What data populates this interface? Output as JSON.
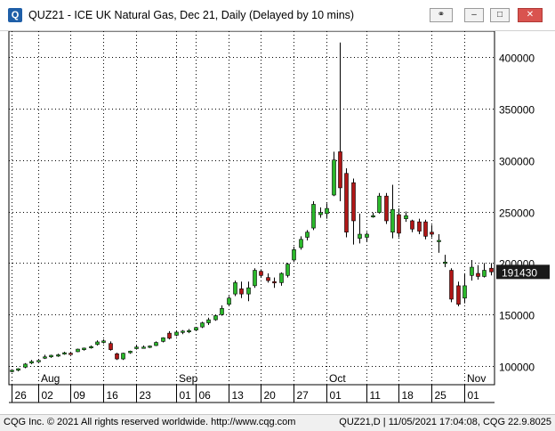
{
  "window": {
    "title": "QUZ21 - ICE UK Natural Gas, Dec 21, Daily (Delayed by 10 mins)",
    "app_icon_letter": "Q",
    "buttons": {
      "minimize": "–",
      "maximize": "□",
      "close": "✕",
      "link": "⚭"
    }
  },
  "chart_data": {
    "type": "candlestick",
    "y_axis": {
      "position": "right",
      "ylim": [
        82000,
        425000
      ],
      "ticks": [
        100000,
        150000,
        200000,
        250000,
        300000,
        350000,
        400000
      ]
    },
    "x_tick_labels": [
      {
        "label": "26",
        "i": 0
      },
      {
        "label": "02",
        "i": 4
      },
      {
        "label": "09",
        "i": 9
      },
      {
        "label": "16",
        "i": 14
      },
      {
        "label": "23",
        "i": 19
      },
      {
        "label": "01",
        "i": 25
      },
      {
        "label": "06",
        "i": 28
      },
      {
        "label": "13",
        "i": 33
      },
      {
        "label": "20",
        "i": 38
      },
      {
        "label": "27",
        "i": 43
      },
      {
        "label": "01",
        "i": 48
      },
      {
        "label": "11",
        "i": 54
      },
      {
        "label": "18",
        "i": 59
      },
      {
        "label": "25",
        "i": 64
      },
      {
        "label": "01",
        "i": 69
      }
    ],
    "month_labels": [
      {
        "label": "Aug",
        "i": 4
      },
      {
        "label": "Sep",
        "i": 25
      },
      {
        "label": "Oct",
        "i": 48
      },
      {
        "label": "Nov",
        "i": 69
      }
    ],
    "last_price": "191430",
    "candles": [
      {
        "o": 95000,
        "h": 97000,
        "l": 94000,
        "c": 96000
      },
      {
        "o": 96000,
        "h": 98000,
        "l": 95000,
        "c": 97500
      },
      {
        "o": 99000,
        "h": 103000,
        "l": 98000,
        "c": 102000
      },
      {
        "o": 103000,
        "h": 106000,
        "l": 102000,
        "c": 104500
      },
      {
        "o": 105000,
        "h": 106000,
        "l": 104000,
        "c": 105500
      },
      {
        "o": 108000,
        "h": 111000,
        "l": 107000,
        "c": 109000
      },
      {
        "o": 109000,
        "h": 111000,
        "l": 108000,
        "c": 110500
      },
      {
        "o": 110000,
        "h": 112000,
        "l": 109000,
        "c": 111000
      },
      {
        "o": 112000,
        "h": 114000,
        "l": 111000,
        "c": 113000
      },
      {
        "o": 112500,
        "h": 113000,
        "l": 111500,
        "c": 112000
      },
      {
        "o": 114000,
        "h": 117000,
        "l": 113500,
        "c": 116500
      },
      {
        "o": 116000,
        "h": 118000,
        "l": 115000,
        "c": 117500
      },
      {
        "o": 118000,
        "h": 120000,
        "l": 117000,
        "c": 119000
      },
      {
        "o": 121000,
        "h": 125000,
        "l": 120000,
        "c": 123500
      },
      {
        "o": 123000,
        "h": 126000,
        "l": 122000,
        "c": 124500
      },
      {
        "o": 122000,
        "h": 124000,
        "l": 115000,
        "c": 116000
      },
      {
        "o": 112000,
        "h": 113000,
        "l": 106000,
        "c": 107000
      },
      {
        "o": 107000,
        "h": 113000,
        "l": 106000,
        "c": 112500
      },
      {
        "o": 113000,
        "h": 115000,
        "l": 112000,
        "c": 114500
      },
      {
        "o": 117000,
        "h": 120000,
        "l": 116000,
        "c": 118500
      },
      {
        "o": 118500,
        "h": 120000,
        "l": 117000,
        "c": 118500
      },
      {
        "o": 118500,
        "h": 120000,
        "l": 117500,
        "c": 119500
      },
      {
        "o": 120000,
        "h": 124000,
        "l": 119500,
        "c": 123000
      },
      {
        "o": 124000,
        "h": 128000,
        "l": 123000,
        "c": 127500
      },
      {
        "o": 132000,
        "h": 134000,
        "l": 126000,
        "c": 127000
      },
      {
        "o": 130000,
        "h": 134000,
        "l": 129000,
        "c": 133000
      },
      {
        "o": 133000,
        "h": 135000,
        "l": 131000,
        "c": 134000
      },
      {
        "o": 134000,
        "h": 136000,
        "l": 132000,
        "c": 134500
      },
      {
        "o": 135000,
        "h": 138000,
        "l": 134000,
        "c": 137500
      },
      {
        "o": 138000,
        "h": 143000,
        "l": 137000,
        "c": 142000
      },
      {
        "o": 142000,
        "h": 147000,
        "l": 140000,
        "c": 145000
      },
      {
        "o": 145000,
        "h": 150000,
        "l": 144000,
        "c": 149000
      },
      {
        "o": 150000,
        "h": 159000,
        "l": 149000,
        "c": 156000
      },
      {
        "o": 160000,
        "h": 168000,
        "l": 158000,
        "c": 166000
      },
      {
        "o": 170000,
        "h": 183000,
        "l": 168000,
        "c": 181000
      },
      {
        "o": 175000,
        "h": 182000,
        "l": 166000,
        "c": 170000
      },
      {
        "o": 170000,
        "h": 182000,
        "l": 163000,
        "c": 176000
      },
      {
        "o": 178000,
        "h": 195000,
        "l": 176000,
        "c": 193000
      },
      {
        "o": 192000,
        "h": 194000,
        "l": 186000,
        "c": 188000
      },
      {
        "o": 186000,
        "h": 190000,
        "l": 181000,
        "c": 183000
      },
      {
        "o": 182000,
        "h": 186000,
        "l": 176000,
        "c": 181000
      },
      {
        "o": 181000,
        "h": 191000,
        "l": 178000,
        "c": 190000
      },
      {
        "o": 188000,
        "h": 200000,
        "l": 186000,
        "c": 199000
      },
      {
        "o": 203000,
        "h": 216000,
        "l": 201000,
        "c": 213000
      },
      {
        "o": 215000,
        "h": 226000,
        "l": 213000,
        "c": 223000
      },
      {
        "o": 225000,
        "h": 232000,
        "l": 222000,
        "c": 230000
      },
      {
        "o": 234000,
        "h": 260000,
        "l": 232000,
        "c": 257000
      },
      {
        "o": 247000,
        "h": 254000,
        "l": 244000,
        "c": 249000
      },
      {
        "o": 248000,
        "h": 258000,
        "l": 243000,
        "c": 253000
      },
      {
        "o": 266000,
        "h": 308000,
        "l": 265000,
        "c": 300000
      },
      {
        "o": 308000,
        "h": 414000,
        "l": 260000,
        "c": 273000
      },
      {
        "o": 287000,
        "h": 292000,
        "l": 225000,
        "c": 230000
      },
      {
        "o": 278000,
        "h": 282000,
        "l": 218000,
        "c": 241000
      },
      {
        "o": 224000,
        "h": 248000,
        "l": 219000,
        "c": 228000
      },
      {
        "o": 225000,
        "h": 230000,
        "l": 221000,
        "c": 228000
      },
      {
        "o": 245000,
        "h": 249000,
        "l": 244000,
        "c": 246000
      },
      {
        "o": 249000,
        "h": 268000,
        "l": 248000,
        "c": 265000
      },
      {
        "o": 265000,
        "h": 268000,
        "l": 238000,
        "c": 241000
      },
      {
        "o": 230000,
        "h": 276000,
        "l": 224000,
        "c": 252000
      },
      {
        "o": 247000,
        "h": 253000,
        "l": 225000,
        "c": 229000
      },
      {
        "o": 243000,
        "h": 250000,
        "l": 240000,
        "c": 246000
      },
      {
        "o": 241000,
        "h": 242000,
        "l": 230000,
        "c": 233000
      },
      {
        "o": 240000,
        "h": 243000,
        "l": 228000,
        "c": 231000
      },
      {
        "o": 240000,
        "h": 242000,
        "l": 223000,
        "c": 226000
      },
      {
        "o": 230000,
        "h": 237000,
        "l": 225000,
        "c": 228000
      },
      {
        "o": 222000,
        "h": 228000,
        "l": 210000,
        "c": 222000
      },
      {
        "o": 200000,
        "h": 208000,
        "l": 196000,
        "c": 201000
      },
      {
        "o": 193000,
        "h": 195000,
        "l": 162000,
        "c": 165000
      },
      {
        "o": 178000,
        "h": 182000,
        "l": 158000,
        "c": 160000
      },
      {
        "o": 166000,
        "h": 190000,
        "l": 161000,
        "c": 178000
      },
      {
        "o": 188000,
        "h": 203000,
        "l": 183000,
        "c": 196000
      },
      {
        "o": 190000,
        "h": 198000,
        "l": 184000,
        "c": 187000
      },
      {
        "o": 187000,
        "h": 200000,
        "l": 186000,
        "c": 193000
      },
      {
        "o": 195000,
        "h": 200000,
        "l": 188000,
        "c": 191430
      }
    ],
    "colors": {
      "up": "#2bb82b",
      "down": "#b01717",
      "wick": "#000000",
      "grid": "#000000",
      "price_box": "#1a1a1a"
    }
  },
  "footer": {
    "left": "CQG Inc. © 2021 All rights reserved worldwide. http://www.cqg.com",
    "right": "QUZ21,D | 11/05/2021 17:04:08, CQG 22.9.8025"
  }
}
